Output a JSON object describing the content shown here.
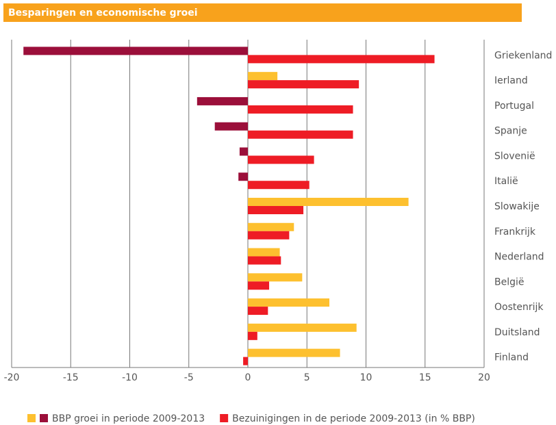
{
  "chart_data": {
    "type": "hbar",
    "title": "Besparingen en economische groei",
    "categories": [
      "Griekenland",
      "Ierland",
      "Portugal",
      "Spanje",
      "Slovenië",
      "Italië",
      "Slowakije",
      "Frankrijk",
      "Nederland",
      "België",
      "Oostenrijk",
      "Duitsland",
      "Finland"
    ],
    "series": [
      {
        "name": "BBP groei in periode 2009-2013",
        "color": "#fdc02f",
        "negative_color": "#9b0f3a",
        "values": [
          -19.0,
          2.5,
          -4.3,
          -2.8,
          -0.7,
          -0.8,
          13.6,
          3.9,
          2.7,
          4.6,
          6.9,
          9.2,
          7.8
        ]
      },
      {
        "name": "Bezuinigingen in de periode 2009-2013 (in % BBP)",
        "color": "#ee1c25",
        "values": [
          15.8,
          9.4,
          8.9,
          8.9,
          5.6,
          5.2,
          4.7,
          3.5,
          2.8,
          1.8,
          1.7,
          0.8,
          -0.4
        ]
      }
    ],
    "xlim": [
      -20,
      20
    ],
    "xticks": [
      -20,
      -15,
      -10,
      -5,
      0,
      5,
      10,
      15,
      20
    ],
    "grid": true
  }
}
